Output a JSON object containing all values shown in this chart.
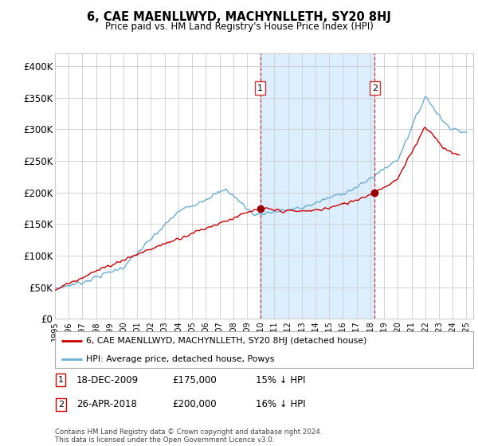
{
  "title": "6, CAE MAENLLWYD, MACHYNLLETH, SY20 8HJ",
  "subtitle": "Price paid vs. HM Land Registry's House Price Index (HPI)",
  "ylim": [
    0,
    420000
  ],
  "yticks": [
    0,
    50000,
    100000,
    150000,
    200000,
    250000,
    300000,
    350000,
    400000
  ],
  "ytick_labels": [
    "£0",
    "£50K",
    "£100K",
    "£150K",
    "£200K",
    "£250K",
    "£300K",
    "£350K",
    "£400K"
  ],
  "sale1_date_num": 2009.96,
  "sale1_price": 175000,
  "sale1_label": "1",
  "sale1_date_str": "18-DEC-2009",
  "sale1_pct": "15% ↓ HPI",
  "sale2_date_num": 2018.32,
  "sale2_price": 200000,
  "sale2_label": "2",
  "sale2_date_str": "26-APR-2018",
  "sale2_pct": "16% ↓ HPI",
  "hpi_color": "#6baed6",
  "shade_color": "#ddeeff",
  "price_color": "#cc0000",
  "dashed_line_color": "#cc3333",
  "background_color": "#ffffff",
  "grid_color": "#cccccc",
  "legend_property_label": "6, CAE MAENLLWYD, MACHYNLLETH, SY20 8HJ (detached house)",
  "legend_hpi_label": "HPI: Average price, detached house, Powys",
  "footer": "Contains HM Land Registry data © Crown copyright and database right 2024.\nThis data is licensed under the Open Government Licence v3.0.",
  "xmin": 1995,
  "xmax": 2025.5
}
